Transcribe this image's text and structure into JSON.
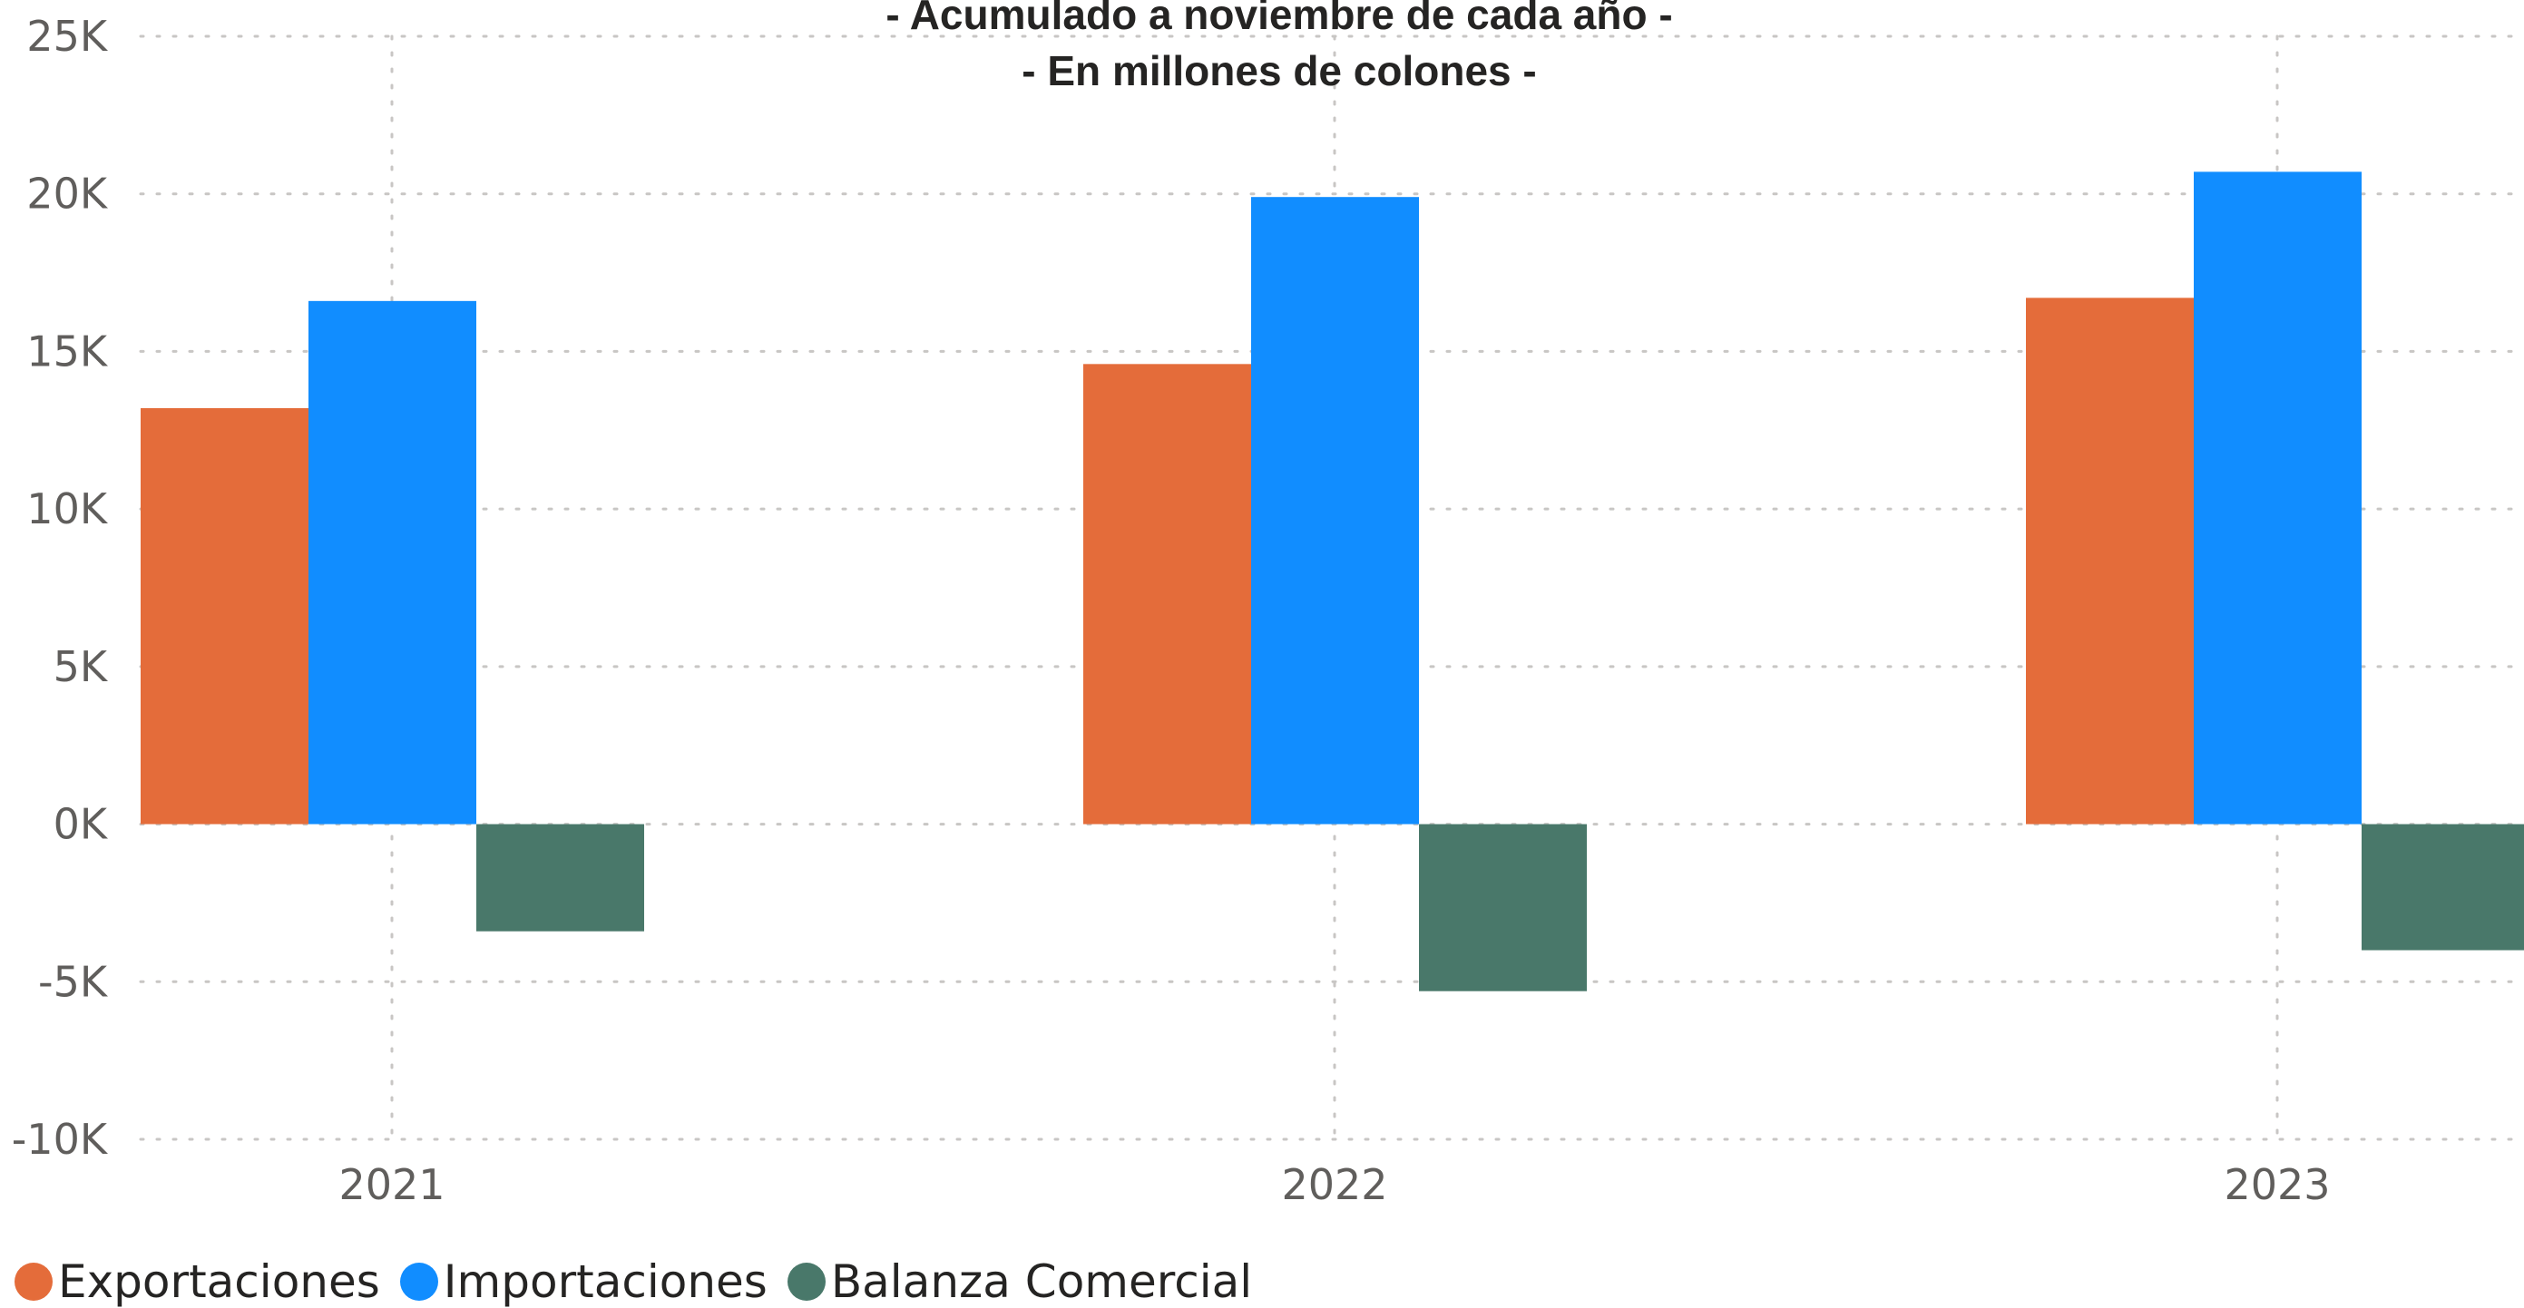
{
  "chart_data": {
    "type": "bar",
    "title_lines": [
      "- Acumulado a noviembre de cada año -",
      "- En millones de colones -"
    ],
    "categories": [
      "2021",
      "2022",
      "2023"
    ],
    "series": [
      {
        "name": "Exportaciones",
        "color": "#E46C3A",
        "values": [
          13200,
          14600,
          16700
        ]
      },
      {
        "name": "Importaciones",
        "color": "#118DFF",
        "values": [
          16600,
          19900,
          20700
        ]
      },
      {
        "name": "Balanza Comercial",
        "color": "#49786A",
        "values": [
          -3400,
          -5300,
          -4000
        ]
      }
    ],
    "ylim": [
      -10000,
      25000
    ],
    "yticks": [
      25000,
      20000,
      15000,
      10000,
      5000,
      0,
      -5000,
      -10000
    ],
    "ytick_labels": [
      "25K",
      "20K",
      "15K",
      "10K",
      "5K",
      "0K",
      "-5K",
      "-10K"
    ],
    "grid": true,
    "legend_position": "bottom-left"
  }
}
